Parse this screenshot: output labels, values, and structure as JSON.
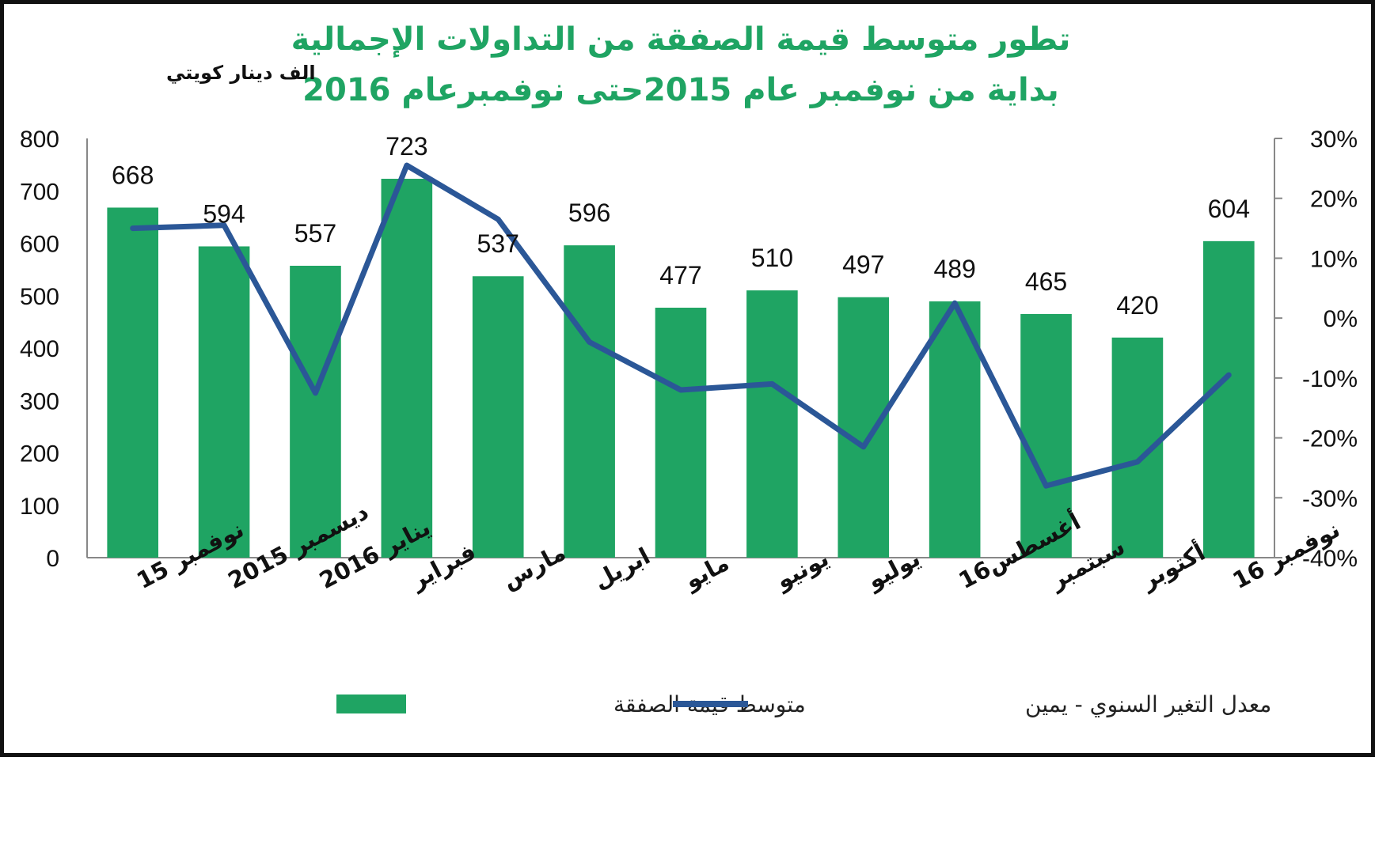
{
  "chart_data": {
    "type": "bar",
    "title": "تطور متوسط قيمة الصفقة من التداولات الإجمالية",
    "subtitle": "بداية من نوفمبر عام 2015حتى نوفمبرعام  2016",
    "ylabel": "الف دينار كويتي",
    "categories": [
      "نوفمبر 15",
      "ديسمبر 2015",
      "يناير 2016",
      "فبراير",
      "مارس",
      "ابريل",
      "مايو",
      "يونيو",
      "يوليو",
      "أغسطس16",
      "سبتمبر",
      "أكتوبر",
      "نوفمبر 16"
    ],
    "y_ticks": [
      "0",
      "100",
      "200",
      "300",
      "400",
      "500",
      "600",
      "700",
      "800"
    ],
    "y2_ticks": [
      "-40%",
      "-30%",
      "-20%",
      "-10%",
      "0%",
      "10%",
      "20%",
      "30%"
    ],
    "ylim": [
      0,
      800
    ],
    "y2lim": [
      -40,
      30
    ],
    "series": [
      {
        "name": "متوسط قيمة الصفقة",
        "type": "bar",
        "axis": "left",
        "color": "#1fa463",
        "values": [
          668,
          594,
          557,
          723,
          537,
          596,
          477,
          510,
          497,
          489,
          465,
          420,
          604
        ],
        "labels": [
          "668",
          "594",
          "557",
          "723",
          "537",
          "596",
          "477",
          "510",
          "497",
          "489",
          "465",
          "420",
          "604"
        ]
      },
      {
        "name": "معدل التغير السنوي - يمين",
        "type": "line",
        "axis": "right",
        "color": "#2b5797",
        "values": [
          15,
          15.5,
          -12.5,
          25.5,
          16.5,
          -4,
          -12,
          -11,
          -21.5,
          2.5,
          -28,
          -24,
          -9.5
        ]
      }
    ],
    "grid": false,
    "legend_position": "bottom"
  }
}
